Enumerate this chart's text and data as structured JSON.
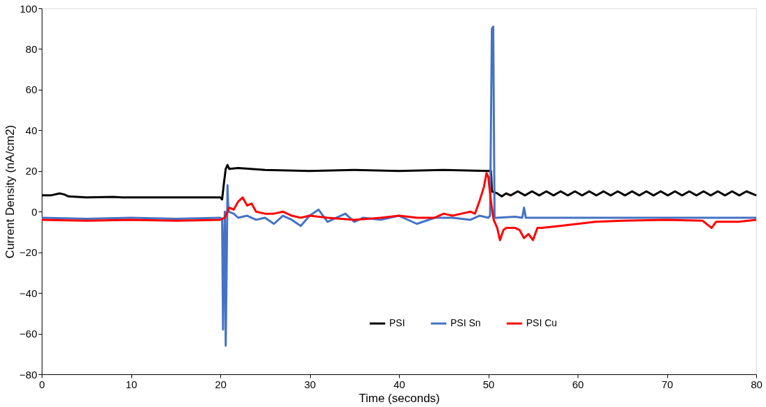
{
  "chart_data": {
    "type": "line",
    "xlabel": "Time (seconds)",
    "ylabel": "Current Density (nA/cm2)",
    "xlim": [
      0,
      80
    ],
    "xticks": [
      0,
      10,
      20,
      30,
      40,
      50,
      60,
      70,
      80
    ],
    "ylim": [
      -80,
      100
    ],
    "yticks": [
      -80,
      -60,
      -40,
      -20,
      0,
      20,
      40,
      60,
      80,
      100
    ],
    "grid": false,
    "legend": "bottom right",
    "marker": "none",
    "line_style": "solid",
    "series": [
      {
        "name": "PSI",
        "color": "#000000",
        "x": [
          0,
          1,
          2,
          2.5,
          3,
          5,
          8,
          9,
          20,
          20.2,
          20.4,
          20.6,
          20.8,
          21,
          22,
          25,
          30,
          35,
          40,
          45,
          50,
          50.3,
          50.4,
          51,
          51.5,
          52,
          52.5,
          53.3,
          54.1,
          54.9,
          55.7,
          56.5,
          57.3,
          58.1,
          58.9,
          59.7,
          60.5,
          61.3,
          62.1,
          62.9,
          63.7,
          64.5,
          65.3,
          66.1,
          66.9,
          67.7,
          68.5,
          69.3,
          70.1,
          70.9,
          71.7,
          72.5,
          73.3,
          74.1,
          74.9,
          75.7,
          76.5,
          77.3,
          78.1,
          78.9,
          80
        ],
        "values": [
          8,
          8,
          9,
          8.5,
          7.5,
          7,
          7.3,
          7,
          7,
          6,
          14,
          21,
          23,
          21,
          21.5,
          20.5,
          20,
          20.5,
          20,
          20.5,
          20,
          20,
          10,
          9,
          7.5,
          9,
          8,
          10,
          8,
          10,
          8,
          10,
          8,
          10,
          8,
          10,
          8,
          10,
          8,
          10,
          8,
          10,
          8,
          10,
          8,
          10,
          8,
          10,
          8,
          10,
          8,
          10,
          8,
          10,
          8,
          10,
          8,
          10,
          8,
          10,
          8
        ]
      },
      {
        "name": "PSI Sn",
        "color": "#4472c4",
        "x": [
          0,
          5,
          10,
          15,
          20,
          20.2,
          20.3,
          20.4,
          20.5,
          20.6,
          20.7,
          20.8,
          20.9,
          21.5,
          22,
          23,
          24,
          25,
          26,
          27,
          28,
          29,
          30,
          31,
          32,
          33,
          34,
          35,
          36,
          38,
          40,
          42,
          44,
          46,
          48,
          49,
          50,
          50.2,
          50.4,
          50.55,
          50.7,
          51,
          53,
          53.8,
          54,
          54.2,
          60,
          70,
          80
        ],
        "values": [
          -3,
          -3.5,
          -3,
          -3.5,
          -3,
          -4,
          -58,
          -20,
          0,
          -66,
          -30,
          13,
          0,
          -1,
          -3,
          -2,
          -4,
          -3,
          -6,
          -2,
          -4,
          -7,
          -2,
          1,
          -5,
          -3,
          -1,
          -5,
          -3,
          -4,
          -2,
          -6,
          -3,
          -3,
          -4,
          -2,
          -3,
          -2,
          90,
          91,
          -3,
          -3,
          -2.5,
          -3,
          2,
          -3,
          -3,
          -3,
          -3
        ]
      },
      {
        "name": "PSI Cu",
        "color": "#ff0000",
        "x": [
          0,
          5,
          10,
          15,
          20,
          20.5,
          21,
          21.5,
          22,
          22.5,
          23,
          23.5,
          24,
          25,
          26,
          27,
          28,
          29,
          30,
          32,
          35,
          38,
          40,
          42,
          44,
          45,
          46,
          47,
          48,
          48.5,
          49,
          49.5,
          49.8,
          50,
          50.3,
          50.6,
          51,
          51.3,
          51.7,
          52,
          53,
          53.5,
          54,
          54.5,
          55,
          55.5,
          56,
          58,
          60,
          62,
          65,
          70,
          74,
          75,
          75.5,
          78,
          80
        ],
        "values": [
          -4,
          -4.5,
          -4,
          -4.5,
          -4,
          -3,
          2,
          1,
          5,
          7,
          3,
          4,
          0,
          -1,
          -1,
          0,
          -2,
          -3,
          -2,
          -3,
          -4,
          -3,
          -2,
          -3,
          -3,
          -1,
          -2,
          -1,
          0,
          -1,
          5,
          12,
          19,
          17,
          5,
          -4,
          -8,
          -14,
          -9,
          -8,
          -8,
          -9,
          -13,
          -11,
          -14,
          -8,
          -8,
          -7,
          -6,
          -5,
          -4.5,
          -4,
          -4.5,
          -8,
          -5,
          -5,
          -4
        ]
      }
    ]
  }
}
